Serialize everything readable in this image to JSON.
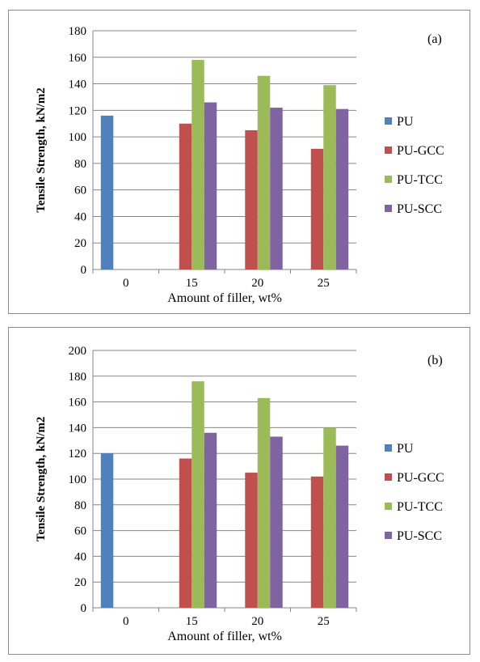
{
  "chart_data": [
    {
      "type": "bar",
      "panel_label": "(a)",
      "categories": [
        "0",
        "15",
        "20",
        "25"
      ],
      "series": [
        {
          "name": "PU",
          "values": [
            116,
            null,
            null,
            null
          ]
        },
        {
          "name": "PU-GCC",
          "values": [
            null,
            110,
            105,
            91
          ]
        },
        {
          "name": "PU-TCC",
          "values": [
            null,
            158,
            146,
            139
          ]
        },
        {
          "name": "PU-SCC",
          "values": [
            null,
            126,
            122,
            121
          ]
        }
      ],
      "xlabel": "Amount of filler,  wt%",
      "ylabel": "Tensile Strength, kN/m2",
      "ylim": [
        0,
        180
      ],
      "yticks": [
        "0",
        "20",
        "40",
        "60",
        "80",
        "100",
        "120",
        "140",
        "160",
        "180"
      ],
      "grid": true,
      "legend_position": "right"
    },
    {
      "type": "bar",
      "panel_label": "(b)",
      "categories": [
        "0",
        "15",
        "20",
        "25"
      ],
      "series": [
        {
          "name": "PU",
          "values": [
            120,
            null,
            null,
            null
          ]
        },
        {
          "name": "PU-GCC",
          "values": [
            null,
            116,
            105,
            102
          ]
        },
        {
          "name": "PU-TCC",
          "values": [
            null,
            176,
            163,
            140
          ]
        },
        {
          "name": "PU-SCC",
          "values": [
            null,
            136,
            133,
            126
          ]
        }
      ],
      "xlabel": "Amount of filler,  wt%",
      "ylabel": "Tensile Strength, kN/m2",
      "ylim": [
        0,
        200
      ],
      "yticks": [
        "0",
        "20",
        "40",
        "60",
        "80",
        "100",
        "120",
        "140",
        "160",
        "180",
        "200"
      ],
      "grid": true,
      "legend_position": "right"
    }
  ],
  "colors": {
    "PU": "#4f81bd",
    "PU-GCC": "#c0504d",
    "PU-TCC": "#9bbb59",
    "PU-SCC": "#8064a2",
    "grid": "#868686",
    "axis": "#868686"
  }
}
